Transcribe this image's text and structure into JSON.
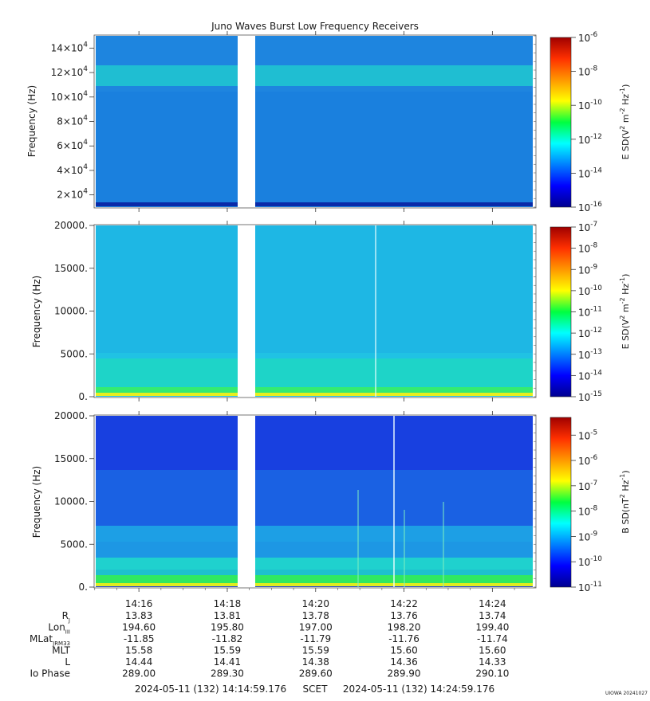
{
  "title": "Juno Waves Burst Low Frequency Receivers",
  "credit": "UIOWA 20241027",
  "chart_data": [
    {
      "type": "heatmap",
      "ylabel": "Frequency (Hz)",
      "ylim": [
        10000,
        150000
      ],
      "yticks": [
        20000,
        40000,
        60000,
        80000,
        100000,
        120000,
        140000
      ],
      "ytick_labels": [
        {
          "mant": "2×10",
          "exp": "4"
        },
        {
          "mant": "4×10",
          "exp": "4"
        },
        {
          "mant": "6×10",
          "exp": "4"
        },
        {
          "mant": "8×10",
          "exp": "4"
        },
        {
          "mant": "10×10",
          "exp": "4"
        },
        {
          "mant": "12×10",
          "exp": "4"
        },
        {
          "mant": "14×10",
          "exp": "4"
        }
      ],
      "colorbar": {
        "label": "E SD(V² m⁻² Hz⁻¹)",
        "label_base": "E SD(V",
        "label_sup1": "2",
        "label_mid": " m",
        "label_sup2": "-2",
        "label_mid2": " Hz",
        "label_sup3": "-1",
        "label_end": ")",
        "log_range": [
          -16,
          -6
        ],
        "ticks": [
          {
            "exp": "-6"
          },
          {
            "exp": "-8"
          },
          {
            "exp": "-10"
          },
          {
            "exp": "-12"
          },
          {
            "exp": "-14"
          },
          {
            "exp": "-16"
          }
        ]
      },
      "data_gaps": [
        [
          "14:18:10",
          "14:18:34"
        ]
      ],
      "features": [
        "broadband noise ~1e-13",
        "enhanced band 110000-125000 Hz",
        "dark band near 12000 Hz"
      ]
    },
    {
      "type": "heatmap",
      "ylabel": "Frequency (Hz)",
      "ylim": [
        0,
        20000
      ],
      "yticks": [
        0,
        5000,
        10000,
        15000,
        20000
      ],
      "ytick_labels": [
        {
          "mant": "0."
        },
        {
          "mant": "5000."
        },
        {
          "mant": "10000."
        },
        {
          "mant": "15000."
        },
        {
          "mant": "20000."
        }
      ],
      "colorbar": {
        "label": "E SD(V² m⁻² Hz⁻¹)",
        "label_base": "E SD(V",
        "label_sup1": "2",
        "label_mid": " m",
        "label_sup2": "-2",
        "label_mid2": " Hz",
        "label_sup3": "-1",
        "label_end": ")",
        "log_range": [
          -15,
          -7
        ],
        "ticks": [
          {
            "exp": "-7"
          },
          {
            "exp": "-8"
          },
          {
            "exp": "-9"
          },
          {
            "exp": "-10"
          },
          {
            "exp": "-11"
          },
          {
            "exp": "-12"
          },
          {
            "exp": "-13"
          },
          {
            "exp": "-14"
          },
          {
            "exp": "-15"
          }
        ]
      },
      "data_gaps": [
        [
          "14:18:10",
          "14:18:34"
        ]
      ],
      "features": [
        "noise ~1e-13",
        "enhancement below 2000 Hz",
        "vertical line near 14:21:22"
      ]
    },
    {
      "type": "heatmap",
      "ylabel": "Frequency (Hz)",
      "ylim": [
        0,
        20000
      ],
      "yticks": [
        0,
        5000,
        10000,
        15000,
        20000
      ],
      "ytick_labels": [
        {
          "mant": "0."
        },
        {
          "mant": "5000."
        },
        {
          "mant": "10000."
        },
        {
          "mant": "15000."
        },
        {
          "mant": "20000."
        }
      ],
      "colorbar": {
        "label": "B SD(nT² Hz⁻¹)",
        "label_base": "B SD(nT",
        "label_sup1": "2",
        "label_mid": " Hz",
        "label_sup2": "-1",
        "label_mid2": "",
        "label_sup3": "",
        "label_end": ")",
        "log_range": [
          -11,
          -4.3
        ],
        "ticks": [
          {
            "exp": "-5"
          },
          {
            "exp": "-6"
          },
          {
            "exp": "-7"
          },
          {
            "exp": "-8"
          },
          {
            "exp": "-9"
          },
          {
            "exp": "-10"
          },
          {
            "exp": "-11"
          }
        ]
      },
      "data_gaps": [
        [
          "14:18:10",
          "14:18:34"
        ]
      ],
      "features": [
        "low background ~1e-10 at high frequency",
        "rising intensity toward low frequency",
        "vertical lines near 14:21:00, 14:21:48, 14:22:06, 14:22:54"
      ]
    }
  ],
  "xaxis": {
    "tick_labels": [
      "14:16",
      "14:18",
      "14:20",
      "14:22",
      "14:24"
    ]
  },
  "ephemeris": {
    "rows": [
      {
        "label": "R",
        "sub": "J",
        "values": [
          "13.83",
          "13.81",
          "13.78",
          "13.76",
          "13.74"
        ]
      },
      {
        "label": "Lon",
        "sub": "III",
        "values": [
          "194.60",
          "195.80",
          "197.00",
          "198.20",
          "199.40"
        ]
      },
      {
        "label": "MLat",
        "sub": "JRM33",
        "values": [
          "-11.85",
          "-11.82",
          "-11.79",
          "-11.76",
          "-11.74"
        ]
      },
      {
        "label": "MLT",
        "sub": "",
        "values": [
          "15.58",
          "15.59",
          "15.59",
          "15.60",
          "15.60"
        ]
      },
      {
        "label": "L",
        "sub": "",
        "values": [
          "14.44",
          "14.41",
          "14.38",
          "14.36",
          "14.33"
        ]
      },
      {
        "label": "Io Phase",
        "sub": "",
        "values": [
          "289.00",
          "289.30",
          "289.60",
          "289.90",
          "290.10"
        ]
      }
    ]
  },
  "footer": {
    "start": "2024-05-11 (132) 14:14:59.176",
    "label": "SCET",
    "end": "2024-05-11 (132) 14:24:59.176"
  }
}
